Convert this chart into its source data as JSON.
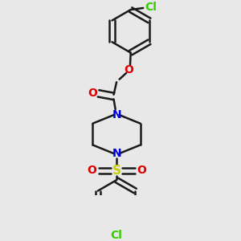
{
  "background_color": "#e8e8e8",
  "bond_color": "#1a1a1a",
  "nitrogen_color": "#0000dd",
  "oxygen_color": "#dd0000",
  "sulfur_color": "#cccc00",
  "chlorine_color": "#33cc00",
  "line_width": 1.8,
  "figsize": [
    3.0,
    3.0
  ],
  "dpi": 100,
  "xlim": [
    -1.5,
    1.5
  ],
  "ylim": [
    -1.6,
    1.8
  ]
}
